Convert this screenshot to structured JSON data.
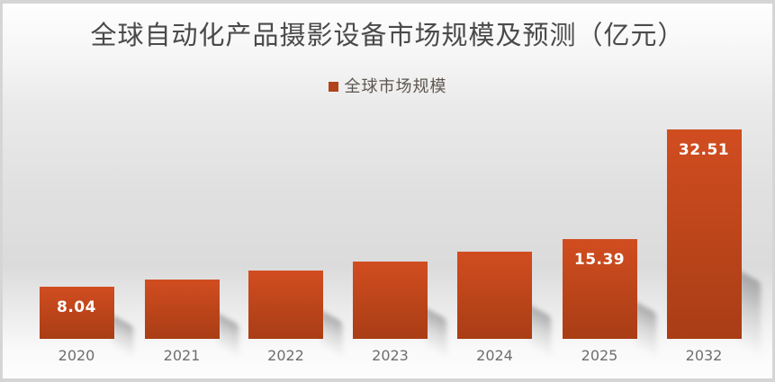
{
  "page": {
    "frame_border_color": "#d5d5d5"
  },
  "chart": {
    "title": "全球自动化产品摄影设备市场规模及预测（亿元）",
    "legend": {
      "label": "全球市场规模",
      "swatch_color": "#b2431b"
    }
  },
  "chart_data": {
    "type": "bar",
    "title": "全球自动化产品摄影设备市场规模及预测（亿元）",
    "unit": "亿元",
    "categories": [
      "2020",
      "2021",
      "2022",
      "2023",
      "2024",
      "2025",
      "2032"
    ],
    "series": [
      {
        "name": "全球市场规模",
        "values": [
          8.04,
          9.2,
          10.6,
          12.0,
          13.5,
          15.39,
          32.51
        ]
      }
    ],
    "data_labels": [
      "8.04",
      "",
      "",
      "",
      "",
      "15.39",
      "32.51"
    ],
    "legend_position": "top",
    "grid": false,
    "y_axis_visible": false,
    "x_axis_visible": false,
    "ylim": [
      0,
      34
    ],
    "bar_gradient_top": "#d14d20",
    "bar_gradient_bottom": "#a93d15",
    "data_label_color": "#ffffff",
    "axis_label_color": "#6e6e6e"
  }
}
